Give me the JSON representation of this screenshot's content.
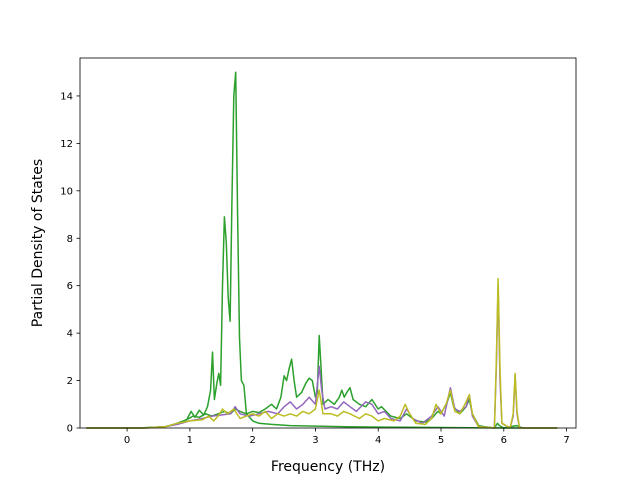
{
  "chart_data": {
    "type": "line",
    "title": "",
    "xlabel": "Frequency (THz)",
    "ylabel": "Partial Density of States",
    "xlim": [
      -0.75,
      7.15
    ],
    "ylim": [
      0,
      15.6
    ],
    "xticks": [
      "0",
      "1",
      "2",
      "3",
      "4",
      "5",
      "6",
      "7"
    ],
    "yticks": [
      "0",
      "2",
      "4",
      "6",
      "8",
      "10",
      "12",
      "14"
    ],
    "grid": false,
    "legend": "none",
    "series": [
      {
        "color": "#2ca02c",
        "points": [
          [
            -0.65,
            0
          ],
          [
            0.2,
            0
          ],
          [
            0.6,
            0.05
          ],
          [
            0.75,
            0.15
          ],
          [
            0.85,
            0.25
          ],
          [
            0.95,
            0.35
          ],
          [
            1.02,
            0.7
          ],
          [
            1.08,
            0.45
          ],
          [
            1.15,
            0.75
          ],
          [
            1.22,
            0.55
          ],
          [
            1.28,
            0.9
          ],
          [
            1.33,
            1.6
          ],
          [
            1.36,
            3.2
          ],
          [
            1.39,
            1.2
          ],
          [
            1.43,
            1.9
          ],
          [
            1.46,
            2.3
          ],
          [
            1.49,
            1.8
          ],
          [
            1.52,
            6.0
          ],
          [
            1.55,
            8.9
          ],
          [
            1.58,
            7.8
          ],
          [
            1.61,
            5.5
          ],
          [
            1.64,
            4.5
          ],
          [
            1.67,
            9.5
          ],
          [
            1.7,
            14.0
          ],
          [
            1.73,
            15.0
          ],
          [
            1.76,
            9.0
          ],
          [
            1.79,
            3.8
          ],
          [
            1.82,
            2.0
          ],
          [
            1.86,
            1.8
          ],
          [
            1.9,
            0.6
          ],
          [
            2.0,
            0.3
          ],
          [
            2.1,
            0.2
          ],
          [
            2.3,
            0.15
          ],
          [
            2.6,
            0.1
          ],
          [
            3.0,
            0.08
          ],
          [
            3.5,
            0.05
          ],
          [
            4.5,
            0.03
          ],
          [
            5.0,
            0.02
          ],
          [
            5.5,
            0.01
          ],
          [
            6.3,
            0
          ],
          [
            6.85,
            0
          ]
        ]
      },
      {
        "color": "#2ca02c",
        "points": [
          [
            -0.65,
            0
          ],
          [
            0.2,
            0
          ],
          [
            0.6,
            0.05
          ],
          [
            0.8,
            0.2
          ],
          [
            0.95,
            0.35
          ],
          [
            1.05,
            0.5
          ],
          [
            1.15,
            0.45
          ],
          [
            1.25,
            0.6
          ],
          [
            1.35,
            0.5
          ],
          [
            1.45,
            0.6
          ],
          [
            1.55,
            0.7
          ],
          [
            1.65,
            0.6
          ],
          [
            1.72,
            0.8
          ],
          [
            1.8,
            0.7
          ],
          [
            1.9,
            0.6
          ],
          [
            2.0,
            0.7
          ],
          [
            2.1,
            0.65
          ],
          [
            2.2,
            0.8
          ],
          [
            2.3,
            1.0
          ],
          [
            2.38,
            0.8
          ],
          [
            2.45,
            1.3
          ],
          [
            2.5,
            2.2
          ],
          [
            2.54,
            2.0
          ],
          [
            2.58,
            2.5
          ],
          [
            2.62,
            2.9
          ],
          [
            2.66,
            2.0
          ],
          [
            2.7,
            1.3
          ],
          [
            2.78,
            1.5
          ],
          [
            2.85,
            1.9
          ],
          [
            2.9,
            2.1
          ],
          [
            2.95,
            2.0
          ],
          [
            3.0,
            1.3
          ],
          [
            3.03,
            1.5
          ],
          [
            3.06,
            3.9
          ],
          [
            3.09,
            2.5
          ],
          [
            3.12,
            1.0
          ],
          [
            3.2,
            1.2
          ],
          [
            3.3,
            1.0
          ],
          [
            3.38,
            1.3
          ],
          [
            3.42,
            1.6
          ],
          [
            3.46,
            1.3
          ],
          [
            3.5,
            1.5
          ],
          [
            3.55,
            1.7
          ],
          [
            3.6,
            1.2
          ],
          [
            3.7,
            1.0
          ],
          [
            3.8,
            0.9
          ],
          [
            3.9,
            1.2
          ],
          [
            4.0,
            0.8
          ],
          [
            4.05,
            0.9
          ],
          [
            4.2,
            0.5
          ],
          [
            4.35,
            0.4
          ],
          [
            4.45,
            0.6
          ],
          [
            4.6,
            0.3
          ],
          [
            4.75,
            0.25
          ],
          [
            4.85,
            0.4
          ],
          [
            4.95,
            0.7
          ],
          [
            5.0,
            0.6
          ],
          [
            5.1,
            1.1
          ],
          [
            5.15,
            1.5
          ],
          [
            5.2,
            0.9
          ],
          [
            5.3,
            0.6
          ],
          [
            5.4,
            0.9
          ],
          [
            5.45,
            1.2
          ],
          [
            5.5,
            0.6
          ],
          [
            5.6,
            0.1
          ],
          [
            5.7,
            0.05
          ],
          [
            5.85,
            0
          ],
          [
            5.9,
            0.2
          ],
          [
            5.93,
            0.1
          ],
          [
            6.0,
            0
          ],
          [
            6.2,
            0.1
          ],
          [
            6.3,
            0
          ],
          [
            6.85,
            0
          ]
        ]
      },
      {
        "color": "#9467bd",
        "points": [
          [
            -0.65,
            0
          ],
          [
            0.3,
            0
          ],
          [
            0.6,
            0.05
          ],
          [
            0.8,
            0.15
          ],
          [
            1.0,
            0.3
          ],
          [
            1.2,
            0.4
          ],
          [
            1.35,
            0.5
          ],
          [
            1.5,
            0.55
          ],
          [
            1.65,
            0.6
          ],
          [
            1.72,
            0.9
          ],
          [
            1.8,
            0.6
          ],
          [
            1.95,
            0.5
          ],
          [
            2.1,
            0.6
          ],
          [
            2.25,
            0.7
          ],
          [
            2.4,
            0.6
          ],
          [
            2.5,
            0.9
          ],
          [
            2.6,
            1.1
          ],
          [
            2.7,
            0.8
          ],
          [
            2.8,
            1.0
          ],
          [
            2.9,
            1.3
          ],
          [
            3.0,
            1.0
          ],
          [
            3.06,
            2.6
          ],
          [
            3.1,
            1.6
          ],
          [
            3.15,
            0.8
          ],
          [
            3.25,
            0.9
          ],
          [
            3.35,
            0.8
          ],
          [
            3.45,
            1.1
          ],
          [
            3.55,
            0.9
          ],
          [
            3.65,
            0.7
          ],
          [
            3.8,
            1.1
          ],
          [
            3.9,
            1.0
          ],
          [
            4.0,
            0.6
          ],
          [
            4.1,
            0.7
          ],
          [
            4.2,
            0.4
          ],
          [
            4.35,
            0.3
          ],
          [
            4.45,
            0.8
          ],
          [
            4.55,
            0.4
          ],
          [
            4.7,
            0.2
          ],
          [
            4.85,
            0.5
          ],
          [
            4.95,
            0.9
          ],
          [
            5.05,
            0.5
          ],
          [
            5.15,
            1.7
          ],
          [
            5.22,
            0.8
          ],
          [
            5.3,
            0.7
          ],
          [
            5.4,
            0.9
          ],
          [
            5.45,
            1.4
          ],
          [
            5.5,
            0.5
          ],
          [
            5.6,
            0.05
          ],
          [
            5.85,
            0
          ],
          [
            5.88,
            2.5
          ],
          [
            5.91,
            6.0
          ],
          [
            5.94,
            2.0
          ],
          [
            5.97,
            0.2
          ],
          [
            6.1,
            0
          ],
          [
            6.15,
            0.5
          ],
          [
            6.18,
            2.2
          ],
          [
            6.21,
            0.6
          ],
          [
            6.25,
            0
          ],
          [
            6.85,
            0
          ]
        ]
      },
      {
        "color": "#bcbd22",
        "points": [
          [
            -0.65,
            0
          ],
          [
            0.3,
            0
          ],
          [
            0.6,
            0.05
          ],
          [
            0.8,
            0.2
          ],
          [
            1.0,
            0.3
          ],
          [
            1.2,
            0.35
          ],
          [
            1.3,
            0.5
          ],
          [
            1.38,
            0.3
          ],
          [
            1.45,
            0.5
          ],
          [
            1.52,
            0.8
          ],
          [
            1.6,
            0.6
          ],
          [
            1.7,
            0.8
          ],
          [
            1.8,
            0.4
          ],
          [
            1.9,
            0.5
          ],
          [
            2.0,
            0.6
          ],
          [
            2.1,
            0.5
          ],
          [
            2.2,
            0.7
          ],
          [
            2.3,
            0.4
          ],
          [
            2.4,
            0.6
          ],
          [
            2.5,
            0.5
          ],
          [
            2.6,
            0.6
          ],
          [
            2.7,
            0.5
          ],
          [
            2.8,
            0.7
          ],
          [
            2.9,
            0.6
          ],
          [
            3.0,
            0.8
          ],
          [
            3.06,
            1.6
          ],
          [
            3.12,
            0.6
          ],
          [
            3.25,
            0.6
          ],
          [
            3.35,
            0.5
          ],
          [
            3.45,
            0.7
          ],
          [
            3.55,
            0.6
          ],
          [
            3.7,
            0.4
          ],
          [
            3.8,
            0.6
          ],
          [
            3.9,
            0.5
          ],
          [
            4.0,
            0.3
          ],
          [
            4.1,
            0.4
          ],
          [
            4.25,
            0.3
          ],
          [
            4.35,
            0.5
          ],
          [
            4.43,
            1.0
          ],
          [
            4.5,
            0.6
          ],
          [
            4.6,
            0.2
          ],
          [
            4.75,
            0.15
          ],
          [
            4.85,
            0.4
          ],
          [
            4.92,
            1.0
          ],
          [
            5.0,
            0.6
          ],
          [
            5.08,
            1.0
          ],
          [
            5.15,
            1.6
          ],
          [
            5.22,
            0.7
          ],
          [
            5.3,
            0.6
          ],
          [
            5.38,
            1.0
          ],
          [
            5.45,
            1.4
          ],
          [
            5.5,
            0.6
          ],
          [
            5.6,
            0.05
          ],
          [
            5.85,
            0
          ],
          [
            5.88,
            2.8
          ],
          [
            5.91,
            6.3
          ],
          [
            5.94,
            2.5
          ],
          [
            5.97,
            0.2
          ],
          [
            6.1,
            0
          ],
          [
            6.15,
            0.6
          ],
          [
            6.18,
            2.3
          ],
          [
            6.21,
            0.7
          ],
          [
            6.25,
            0
          ],
          [
            6.85,
            0
          ]
        ]
      }
    ]
  }
}
